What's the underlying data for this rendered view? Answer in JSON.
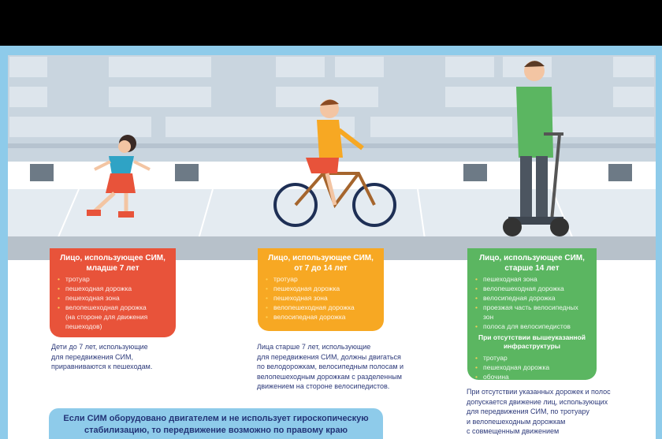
{
  "colors": {
    "red": "#e8533a",
    "orange": "#f7a823",
    "green": "#5bb661",
    "blue": "#8ecbea",
    "text": "#2d3a7a"
  },
  "illustration": {
    "figures": [
      "girl-rollerskates",
      "boy-bicycle",
      "man-segway"
    ]
  },
  "boxes": [
    {
      "title1": "Лицо, использующее СИМ,",
      "title2": "младше 7 лет",
      "items": [
        "тротуар",
        "пешеходная дорожка",
        "пешеходная зона",
        "велопешеходная дорожка"
      ],
      "extra": "(на  стороне для движения пешеходов)",
      "note": [
        "Дети до 7 лет, использующие",
        "для передвижения СИМ,",
        "приравниваются к пешеходам."
      ]
    },
    {
      "title1": "Лицо, использующее СИМ,",
      "title2": "от 7 до 14 лет",
      "items": [
        "тротуар",
        "пешеходная дорожка",
        "пешеходная зона",
        "велопешеходная дорожка",
        "велосипедная дорожка"
      ],
      "note": [
        "Лица старше 7 лет, использующие",
        "для передвижения СИМ, должны двигаться",
        "по велодорожкам, велосипедным полосам и",
        "велопешеходным дорожкам с разделенным",
        "движением на стороне велосипедистов."
      ]
    },
    {
      "title1": "Лицо, использующее СИМ,",
      "title2": "старше 14 лет",
      "items": [
        "пешеходная зона",
        "велопешеходная дорожка",
        "велосипедная дорожка",
        "проезжая часть велосипедных зон",
        "полоса для велосипедистов"
      ],
      "subtitle": "При отсутствии вышеуказанной инфраструктуры",
      "items2": [
        "тротуар",
        "пешеходная дорожка",
        "обочина"
      ],
      "note": [
        "При отсутствии указанных дорожек и полос",
        "допускается движение лиц, использующих",
        "для передвижения СИМ, по тротуару",
        "и велопешеходным дорожкам",
        "с совмещенным движением"
      ]
    }
  ],
  "banner": {
    "line1": "Если СИМ оборудовано двигателем и не использует гироскопическую",
    "line2": "стабилизацию, то передвижение возможно по правому краю"
  }
}
